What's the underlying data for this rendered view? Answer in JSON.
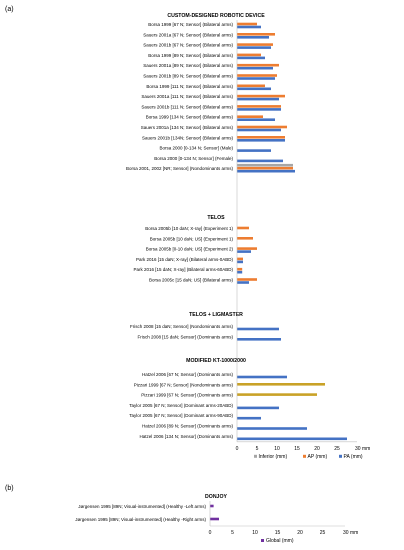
{
  "figure": {
    "panel_a": "(a)",
    "panel_b": "(b)"
  },
  "colors": {
    "inferior": "#a6a6a6",
    "ap": "#ed7d31",
    "pa": "#4472c4",
    "global": "#7030a0",
    "ap_modified": "#c9a227"
  },
  "chart_data": [
    {
      "type": "bar",
      "orientation": "horizontal",
      "panel": "(a)",
      "xlim": [
        0,
        30
      ],
      "x_ticks": [
        "0",
        "5",
        "10",
        "15",
        "20",
        "25",
        "30 mm"
      ],
      "legend": {
        "placement": "bottom",
        "items": [
          {
            "name": "Inferior (mm)",
            "color": "#a6a6a6"
          },
          {
            "name": "AP (mm)",
            "color": "#ed7d31"
          },
          {
            "name": "PA (mm)",
            "color": "#4472c4"
          }
        ]
      },
      "groups": [
        {
          "title": "CUSTOM-DESIGNED ROBOTIC DEVICE",
          "rows": [
            {
              "label": "Borsa 1999 [67 N; Sensor] (Bilateral arms)",
              "inferior": null,
              "ap": 5.0,
              "pa": 6.0
            },
            {
              "label": "Sauers 2001a [67 N; Sensor] (Bilateral arms)",
              "inferior": null,
              "ap": 9.5,
              "pa": 8.0
            },
            {
              "label": "Sauers 2001b [67 N; Sensor] (Bilateral arms)",
              "inferior": null,
              "ap": 9.0,
              "pa": 8.5
            },
            {
              "label": "Borsa 1999 [89 N; Sensor] (Bilateral arms)",
              "inferior": null,
              "ap": 6.0,
              "pa": 7.0
            },
            {
              "label": "Sauers 2001a [89 N; Sensor] (Bilateral arms)",
              "inferior": null,
              "ap": 10.5,
              "pa": 9.0
            },
            {
              "label": "Sauers 2001b [89 N; Sensor] (Bilateral arms)",
              "inferior": null,
              "ap": 10.0,
              "pa": 9.5
            },
            {
              "label": "Borsa 1999 [111 N; Sensor] (Bilateral arms)",
              "inferior": null,
              "ap": 7.0,
              "pa": 8.5
            },
            {
              "label": "Sauers 2001a [111 N; Sensor] (Bilateral arms)",
              "inferior": null,
              "ap": 12.0,
              "pa": 10.5
            },
            {
              "label": "Sauers 2001b [111 N; Sensor] (Bilateral arms)",
              "inferior": null,
              "ap": 11.0,
              "pa": 11.0
            },
            {
              "label": "Borsa 1999 [134 N; Sensor] (Bilateral arms)",
              "inferior": null,
              "ap": 6.5,
              "pa": 9.5
            },
            {
              "label": "Sauers 2001a [134 N; Sensor] (Bilateral arms)",
              "inferior": null,
              "ap": 12.5,
              "pa": 11.0
            },
            {
              "label": "Sauers 2001b [134N; Sensor] (Bilateral arms)",
              "inferior": null,
              "ap": 12.0,
              "pa": 12.0
            },
            {
              "label": "Borsa 2000 [0-134 N; Sensor] (Male)",
              "inferior": null,
              "ap": null,
              "pa": 8.5
            },
            {
              "label": "Borsa 2000 [0-134 N; Sensor] (Female)",
              "inferior": null,
              "ap": null,
              "pa": 11.5
            },
            {
              "label": "Borsa 2001, 2002 [NR; Sensor] (Nondominants arms)",
              "inferior": 14.0,
              "ap": 14.0,
              "pa": 14.5
            }
          ]
        },
        {
          "title": "TELOS",
          "rows": [
            {
              "label": "Borsa 2005b [10 daN; X-ray] (Experiment 1)",
              "inferior": null,
              "ap": 3.0,
              "pa": null
            },
            {
              "label": "Borsa 2005b [10 daN; US] (Experiment 1)",
              "inferior": null,
              "ap": 4.0,
              "pa": null
            },
            {
              "label": "Borsa 2005b [0-10 daN; US] (Experiment 2)",
              "inferior": null,
              "ap": 5.0,
              "pa": 3.5
            },
            {
              "label": "Park 2016 [15 daN; X-ray] (Bilateral arms-0ABD)",
              "inferior": null,
              "ap": 1.5,
              "pa": 1.5
            },
            {
              "label": "Park 2016 [15 daN; X-ray] (Bilateral arms-60ABD)",
              "inferior": null,
              "ap": 1.3,
              "pa": 1.3
            },
            {
              "label": "Borsa 2005c [15 daN; US] (Bilateral arms)",
              "inferior": null,
              "ap": 5.0,
              "pa": 3.0
            }
          ]
        },
        {
          "title": "TELOS + LIGMASTER",
          "rows": [
            {
              "label": "Frisch 2008 [15 daN; Sensor] (Nondominants arms)",
              "inferior": null,
              "ap": null,
              "pa": 10.5
            },
            {
              "label": "Frisch 2008 [15 daN; Sensor] (Dominants arms)",
              "inferior": null,
              "ap": null,
              "pa": 11.0
            }
          ]
        },
        {
          "title": "MODIFIED KT-1000/2000",
          "rows": [
            {
              "label": "Hatzel 2006 [67 N; Sensor] (Dominants arms)",
              "inferior": null,
              "ap": null,
              "pa": 12.5
            },
            {
              "label": "Pizzari 1999 [67 N; Sensor] (Nondominants arms)",
              "inferior": null,
              "ap": 22.0,
              "pa": null
            },
            {
              "label": "Pizzari 1999 [67 N; Sensor] (Dominants arms)",
              "inferior": null,
              "ap": 20.0,
              "pa": null
            },
            {
              "label": "Taylor 2005 [67 N; Sensor] (Dominant arms-20ABD)",
              "inferior": null,
              "ap": null,
              "pa": 10.5
            },
            {
              "label": "Taylor 2005 [67 N; Sensor] (Dominant arms-90ABD)",
              "inferior": null,
              "ap": null,
              "pa": 6.0
            },
            {
              "label": "Hatzel 2006 [89 N; Sensor] (Dominants arms)",
              "inferior": null,
              "ap": null,
              "pa": 17.5
            },
            {
              "label": "Hatzel 2006 [134 N; Sensor] (Dominants arms)",
              "inferior": null,
              "ap": null,
              "pa": 27.5
            }
          ]
        }
      ]
    },
    {
      "type": "bar",
      "orientation": "horizontal",
      "panel": "(b)",
      "xlim": [
        0,
        30
      ],
      "x_ticks": [
        "0",
        "5",
        "10",
        "15",
        "20",
        "25",
        "30 mm"
      ],
      "legend": {
        "placement": "bottom",
        "items": [
          {
            "name": "Global (mm)",
            "color": "#7030a0"
          }
        ]
      },
      "groups": [
        {
          "title": "DONJOY",
          "rows": [
            {
              "label": "Jørgensen 1995 [89N; Visual-instrumented] (Healthy -Left arms)",
              "global": 0.8
            },
            {
              "label": "Jørgensen 1995 [89N; Visual-instrumented] (Healthy -Right arms)",
              "global": 2.0
            }
          ]
        }
      ]
    }
  ]
}
